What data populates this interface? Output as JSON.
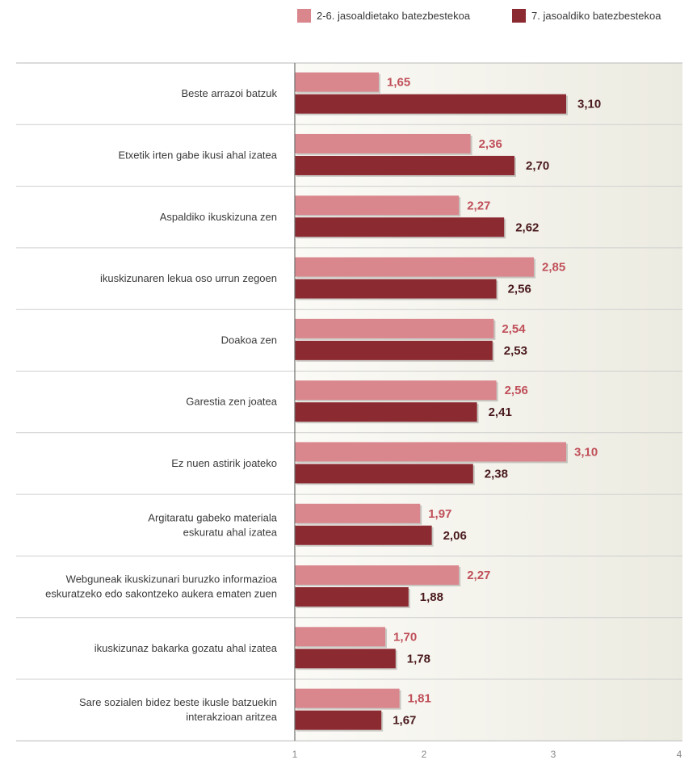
{
  "chart_data": {
    "type": "bar",
    "orientation": "horizontal",
    "categories": [
      [
        "Beste arrazoi batzuk"
      ],
      [
        "Etxetik irten gabe ikusi ahal izatea"
      ],
      [
        "Aspaldiko ikuskizuna zen"
      ],
      [
        "ikuskizunaren lekua oso urrun zegoen"
      ],
      [
        "Doakoa zen"
      ],
      [
        "Garestia zen joatea"
      ],
      [
        "Ez nuen astirik joateko"
      ],
      [
        "Argitaratu gabeko materiala",
        "eskuratu ahal izatea"
      ],
      [
        "Webguneak ikuskizunari buruzko informazioa",
        "eskuratzeko edo sakontzeko aukera ematen zuen"
      ],
      [
        "ikuskizunaz bakarka gozatu ahal izatea"
      ],
      [
        "Sare sozialen bidez beste ikusle batzuekin",
        "interakzioan aritzea"
      ]
    ],
    "series": [
      {
        "name": "2-6. jasoaldietako batezbestekoa",
        "color": "#d9878d",
        "values": [
          1.65,
          2.36,
          2.27,
          2.85,
          2.54,
          2.56,
          3.1,
          1.97,
          2.27,
          1.7,
          1.81
        ],
        "labels": [
          "1,65",
          "2,36",
          "2,27",
          "2,85",
          "2,54",
          "2,56",
          "3,10",
          "1,97",
          "2,27",
          "1,70",
          "1,81"
        ]
      },
      {
        "name": "7. jasoaldiko batezbestekoa",
        "color": "#8b2a31",
        "values": [
          3.1,
          2.7,
          2.62,
          2.56,
          2.53,
          2.41,
          2.38,
          2.06,
          1.88,
          1.78,
          1.67
        ],
        "labels": [
          "3,10",
          "2,70",
          "2,62",
          "2,56",
          "2,53",
          "2,41",
          "2,38",
          "2,06",
          "1,88",
          "1,78",
          "1,67"
        ]
      }
    ],
    "xlim": [
      1,
      4
    ],
    "xticks": [
      1,
      2,
      3,
      4
    ],
    "grid": false,
    "legend_position": "top-right",
    "plot_background": "#f3f1ea"
  }
}
